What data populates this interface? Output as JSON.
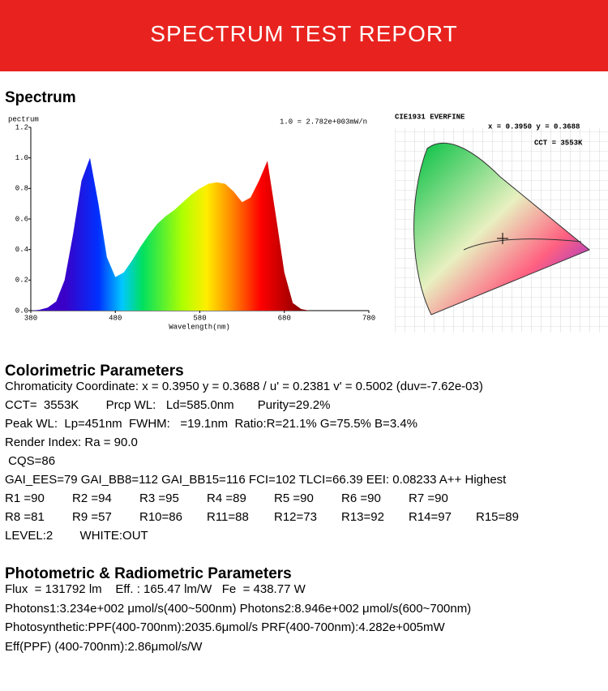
{
  "header": {
    "title": "SPECTRUM TEST REPORT"
  },
  "spectrum": {
    "heading": "Spectrum"
  },
  "chart_data": {
    "type": "area",
    "y_label": "pectrum",
    "x_label": "Wavelength(nm)",
    "annotation": "1.0 = 2.782e+003mW/n",
    "x": [
      380,
      390,
      400,
      410,
      420,
      430,
      440,
      450,
      460,
      470,
      480,
      490,
      500,
      510,
      520,
      530,
      540,
      550,
      560,
      570,
      580,
      590,
      600,
      610,
      620,
      630,
      640,
      650,
      660,
      670,
      680,
      690,
      700,
      710,
      720,
      730,
      740,
      750,
      760,
      770,
      780
    ],
    "values": [
      0,
      0.005,
      0.02,
      0.06,
      0.2,
      0.5,
      0.85,
      1.0,
      0.7,
      0.35,
      0.22,
      0.25,
      0.33,
      0.42,
      0.5,
      0.57,
      0.62,
      0.66,
      0.71,
      0.76,
      0.8,
      0.83,
      0.84,
      0.83,
      0.78,
      0.71,
      0.74,
      0.85,
      0.98,
      0.62,
      0.25,
      0.05,
      0.01,
      0,
      0,
      0,
      0,
      0,
      0,
      0,
      0
    ],
    "xlim": [
      380,
      780
    ],
    "ylim": [
      0,
      1.2
    ],
    "xticks": [
      380,
      480,
      580,
      680,
      780
    ],
    "yticks": [
      {
        "value": 0,
        "label": "0.0"
      },
      0.2,
      0.4,
      0.6,
      0.8,
      {
        "value": 1,
        "label": "1.0"
      },
      1.2
    ]
  },
  "cie": {
    "title": "CIE1931  EVERFINE",
    "coords": "x = 0.3950 y = 0.3688",
    "cct": "CCT = 3553K"
  },
  "colorimetric": {
    "heading": "Colorimetric Parameters",
    "lines": [
      "Chromaticity Coordinate: x = 0.3950 y = 0.3688 / u' = 0.2381 v' = 0.5002 (duv=-7.62e-03)",
      "CCT=  3553K        Prcp WL:   Ld=585.0nm       Purity=29.2%",
      "Peak WL:  Lp=451nm  FWHM:   =19.1nm  Ratio:R=21.1% G=75.5% B=3.4%",
      "Render Index: Ra = 90.0",
      " CQS=86",
      "GAI_EES=79 GAI_BB8=112 GAI_BB15=116 FCI=102 TLCI=66.39 EEI: 0.08233 A++ Highest"
    ],
    "r_rows": [
      [
        "R1 =90",
        "R2 =94",
        "R3 =95",
        "R4 =89",
        "R5 =90",
        "R6 =90",
        "R7 =90"
      ],
      [
        "R8 =81",
        "R9 =57",
        "R10=86",
        "R11=88",
        "R12=73",
        "R13=92",
        "R14=97",
        "R15=89"
      ]
    ],
    "level": "LEVEL:2        WHITE:OUT"
  },
  "photometric": {
    "heading": "Photometric & Radiometric Parameters",
    "lines": [
      "Flux  = 131792 lm    Eff. : 165.47 lm/W   Fe  = 438.77 W",
      "Photons1:3.234e+002 μmol/s(400~500nm) Photons2:8.946e+002 μmol/s(600~700nm)",
      "Photosynthetic:PPF(400-700nm):2035.6μmol/s PRF(400-700nm):4.282e+005mW",
      "Eff(PPF) (400-700nm):2.86μmol/s/W"
    ]
  }
}
